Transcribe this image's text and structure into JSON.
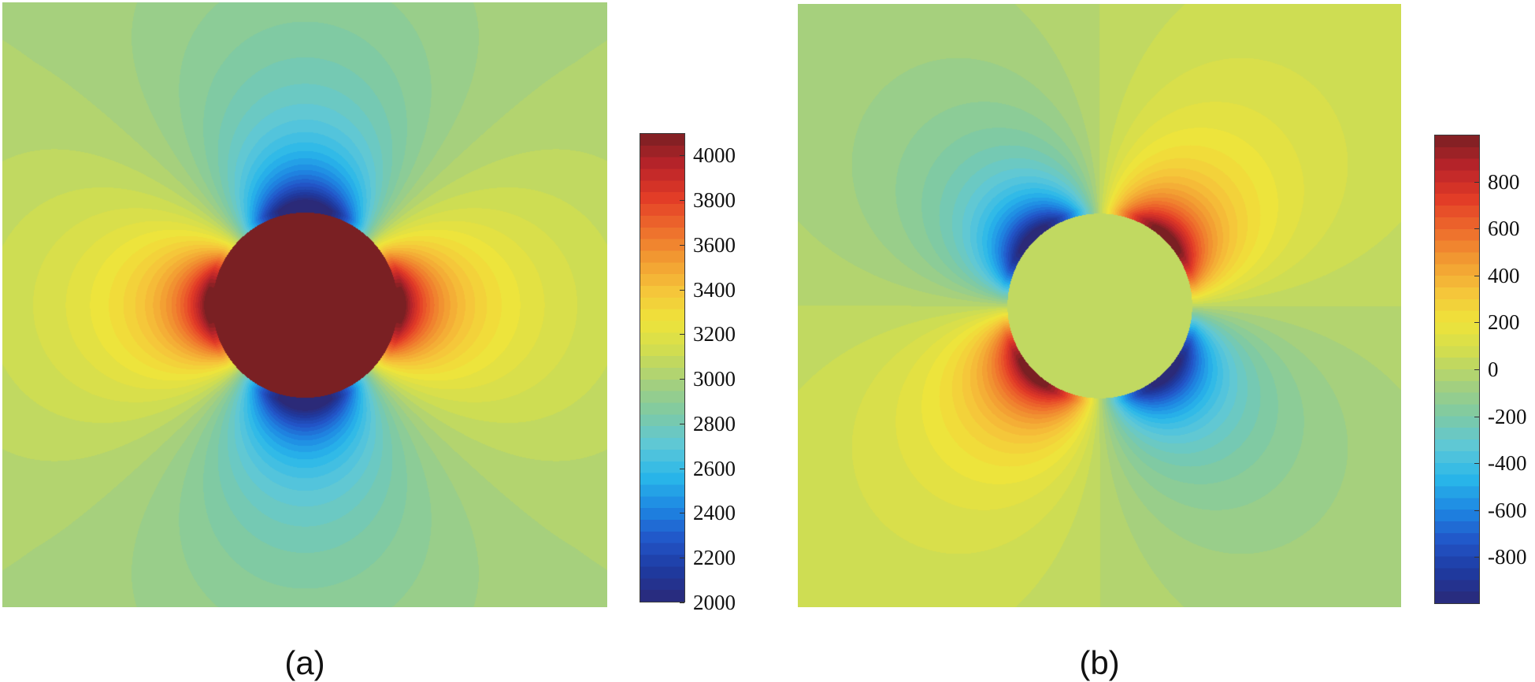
{
  "colormap": [
    "#2b2a78",
    "#1f3aa0",
    "#2256c9",
    "#1e88e3",
    "#29b7ea",
    "#5ec8d8",
    "#7dcaa6",
    "#a5d07e",
    "#cfdd52",
    "#efe43a",
    "#f6c43a",
    "#f29a32",
    "#ee6a2c",
    "#e23a27",
    "#b8242a",
    "#7a2023"
  ],
  "chart_data": [
    {
      "type": "heatmap",
      "caption": "(a)",
      "colorbar": {
        "min": 2000,
        "max": 4100,
        "ticks": [
          2000,
          2200,
          2400,
          2600,
          2800,
          3000,
          3200,
          3400,
          3600,
          3800,
          4000
        ],
        "tick_labels": [
          "2000",
          "2200",
          "2400",
          "2600",
          "2800",
          "3000",
          "3200",
          "3400",
          "3600",
          "3800",
          "4000"
        ]
      },
      "field": {
        "pattern": "cos2theta",
        "far_value": 3000,
        "amplitude": 1000,
        "inclusion_value": 4100,
        "inclusion_radius_fraction": 0.3
      }
    },
    {
      "type": "heatmap",
      "caption": "(b)",
      "colorbar": {
        "min": -1000,
        "max": 1000,
        "ticks": [
          -800,
          -600,
          -400,
          -200,
          0,
          200,
          400,
          600,
          800
        ],
        "tick_labels": [
          "-800",
          "-600",
          "-400",
          "-200",
          "0",
          "200",
          "400",
          "600",
          "800"
        ]
      },
      "field": {
        "pattern": "sin2theta",
        "far_value": 0,
        "amplitude": 1000,
        "inclusion_value": 0,
        "inclusion_radius_fraction": 0.3
      }
    }
  ]
}
